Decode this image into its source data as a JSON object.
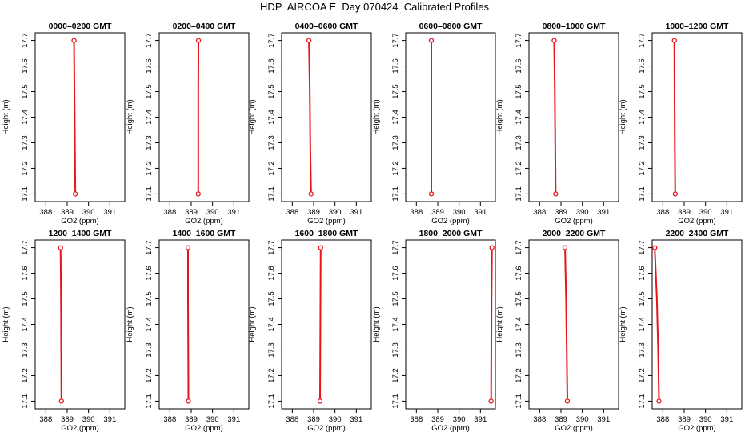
{
  "figure": {
    "title": "HDP  AIRCOA E  Day 070424  Calibrated Profiles"
  },
  "chart_data": [
    {
      "type": "line",
      "title": "0000–0200 GMT",
      "xlabel": "GO2 (ppm)",
      "ylabel": "Height (m)",
      "xlim": [
        387.5,
        391.7
      ],
      "ylim": [
        17.07,
        17.73
      ],
      "xticks": [
        "388",
        "389",
        "390",
        "391"
      ],
      "yticks": [
        "17.1",
        "17.2",
        "17.3",
        "17.4",
        "17.5",
        "17.6",
        "17.7"
      ],
      "series": [
        {
          "x": [
            389.38,
            389.36,
            389.34,
            389.32
          ],
          "y": [
            17.1,
            17.3,
            17.5,
            17.7
          ]
        }
      ]
    },
    {
      "type": "line",
      "title": "0200–0400 GMT",
      "xlabel": "GO2 (ppm)",
      "ylabel": "Height (m)",
      "xlim": [
        387.5,
        391.7
      ],
      "ylim": [
        17.07,
        17.73
      ],
      "xticks": [
        "388",
        "389",
        "390",
        "391"
      ],
      "yticks": [
        "17.1",
        "17.2",
        "17.3",
        "17.4",
        "17.5",
        "17.6",
        "17.7"
      ],
      "series": [
        {
          "x": [
            389.33,
            389.33,
            389.33,
            389.34
          ],
          "y": [
            17.1,
            17.3,
            17.5,
            17.7
          ]
        }
      ]
    },
    {
      "type": "line",
      "title": "0400–0600 GMT",
      "xlabel": "GO2 (ppm)",
      "ylabel": "Height (m)",
      "xlim": [
        387.5,
        391.7
      ],
      "ylim": [
        17.07,
        17.73
      ],
      "xticks": [
        "388",
        "389",
        "390",
        "391"
      ],
      "yticks": [
        "17.1",
        "17.2",
        "17.3",
        "17.4",
        "17.5",
        "17.6",
        "17.7"
      ],
      "series": [
        {
          "x": [
            388.88,
            388.84,
            388.82,
            388.78
          ],
          "y": [
            17.1,
            17.3,
            17.5,
            17.7
          ]
        }
      ]
    },
    {
      "type": "line",
      "title": "0600–0800 GMT",
      "xlabel": "GO2 (ppm)",
      "ylabel": "Height (m)",
      "xlim": [
        387.5,
        391.7
      ],
      "ylim": [
        17.07,
        17.73
      ],
      "xticks": [
        "388",
        "389",
        "390",
        "391"
      ],
      "yticks": [
        "17.1",
        "17.2",
        "17.3",
        "17.4",
        "17.5",
        "17.6",
        "17.7"
      ],
      "series": [
        {
          "x": [
            388.7,
            388.7,
            388.7,
            388.7
          ],
          "y": [
            17.1,
            17.3,
            17.5,
            17.7
          ]
        }
      ]
    },
    {
      "type": "line",
      "title": "0800–1000 GMT",
      "xlabel": "GO2 (ppm)",
      "ylabel": "Height (m)",
      "xlim": [
        387.5,
        391.7
      ],
      "ylim": [
        17.07,
        17.73
      ],
      "xticks": [
        "388",
        "389",
        "390",
        "391"
      ],
      "yticks": [
        "17.1",
        "17.2",
        "17.3",
        "17.4",
        "17.5",
        "17.6",
        "17.7"
      ],
      "series": [
        {
          "x": [
            388.75,
            388.73,
            388.71,
            388.68
          ],
          "y": [
            17.1,
            17.3,
            17.5,
            17.7
          ]
        }
      ]
    },
    {
      "type": "line",
      "title": "1000–1200 GMT",
      "xlabel": "GO2 (ppm)",
      "ylabel": "Height (m)",
      "xlim": [
        387.5,
        391.7
      ],
      "ylim": [
        17.07,
        17.73
      ],
      "xticks": [
        "388",
        "389",
        "390",
        "391"
      ],
      "yticks": [
        "17.1",
        "17.2",
        "17.3",
        "17.4",
        "17.5",
        "17.6",
        "17.7"
      ],
      "series": [
        {
          "x": [
            388.58,
            388.56,
            388.55,
            388.54
          ],
          "y": [
            17.1,
            17.3,
            17.5,
            17.7
          ]
        }
      ]
    },
    {
      "type": "line",
      "title": "1200–1400 GMT",
      "xlabel": "GO2 (ppm)",
      "ylabel": "Height (m)",
      "xlim": [
        387.5,
        391.7
      ],
      "ylim": [
        17.07,
        17.73
      ],
      "xticks": [
        "388",
        "389",
        "390",
        "391"
      ],
      "yticks": [
        "17.1",
        "17.2",
        "17.3",
        "17.4",
        "17.5",
        "17.6",
        "17.7"
      ],
      "series": [
        {
          "x": [
            388.73,
            388.72,
            388.71,
            388.69
          ],
          "y": [
            17.1,
            17.3,
            17.5,
            17.7
          ]
        }
      ]
    },
    {
      "type": "line",
      "title": "1400–1600 GMT",
      "xlabel": "GO2 (ppm)",
      "ylabel": "Height (m)",
      "xlim": [
        387.5,
        391.7
      ],
      "ylim": [
        17.07,
        17.73
      ],
      "xticks": [
        "388",
        "389",
        "390",
        "391"
      ],
      "yticks": [
        "17.1",
        "17.2",
        "17.3",
        "17.4",
        "17.5",
        "17.6",
        "17.7"
      ],
      "series": [
        {
          "x": [
            388.87,
            388.86,
            388.85,
            388.85
          ],
          "y": [
            17.1,
            17.3,
            17.5,
            17.7
          ]
        }
      ]
    },
    {
      "type": "line",
      "title": "1600–1800 GMT",
      "xlabel": "GO2 (ppm)",
      "ylabel": "Height (m)",
      "xlim": [
        387.5,
        391.7
      ],
      "ylim": [
        17.07,
        17.73
      ],
      "xticks": [
        "388",
        "389",
        "390",
        "391"
      ],
      "yticks": [
        "17.1",
        "17.2",
        "17.3",
        "17.4",
        "17.5",
        "17.6",
        "17.7"
      ],
      "series": [
        {
          "x": [
            389.3,
            389.31,
            389.32,
            389.33
          ],
          "y": [
            17.1,
            17.3,
            17.5,
            17.7
          ]
        }
      ]
    },
    {
      "type": "line",
      "title": "1800–2000 GMT",
      "xlabel": "GO2 (ppm)",
      "ylabel": "Height (m)",
      "xlim": [
        387.5,
        391.7
      ],
      "ylim": [
        17.07,
        17.73
      ],
      "xticks": [
        "388",
        "389",
        "390",
        "391"
      ],
      "yticks": [
        "17.1",
        "17.2",
        "17.3",
        "17.4",
        "17.5",
        "17.6",
        "17.7"
      ],
      "series": [
        {
          "x": [
            391.5,
            391.51,
            391.52,
            391.54
          ],
          "y": [
            17.1,
            17.3,
            17.5,
            17.7
          ]
        }
      ]
    },
    {
      "type": "line",
      "title": "2000–2200 GMT",
      "xlabel": "GO2 (ppm)",
      "ylabel": "Height (m)",
      "xlim": [
        387.5,
        391.7
      ],
      "ylim": [
        17.07,
        17.73
      ],
      "xticks": [
        "388",
        "389",
        "390",
        "391"
      ],
      "yticks": [
        "17.1",
        "17.2",
        "17.3",
        "17.4",
        "17.5",
        "17.6",
        "17.7"
      ],
      "series": [
        {
          "x": [
            389.3,
            389.27,
            389.24,
            389.19
          ],
          "y": [
            17.1,
            17.3,
            17.5,
            17.7
          ]
        }
      ]
    },
    {
      "type": "line",
      "title": "2200–2400 GMT",
      "xlabel": "GO2 (ppm)",
      "ylabel": "Height (m)",
      "xlim": [
        387.5,
        391.7
      ],
      "ylim": [
        17.07,
        17.73
      ],
      "xticks": [
        "388",
        "389",
        "390",
        "391"
      ],
      "yticks": [
        "17.1",
        "17.2",
        "17.3",
        "17.4",
        "17.5",
        "17.6",
        "17.7"
      ],
      "series": [
        {
          "x": [
            387.82,
            387.78,
            387.72,
            387.62
          ],
          "y": [
            17.1,
            17.3,
            17.5,
            17.7
          ]
        }
      ]
    }
  ]
}
